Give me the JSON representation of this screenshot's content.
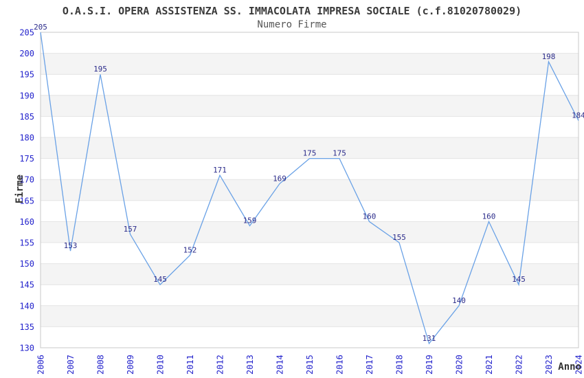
{
  "header": {
    "title": "O.A.S.I. OPERA ASSISTENZA SS. IMMACOLATA IMPRESA SOCIALE (c.f.81020780029)",
    "subtitle": "Numero Firme"
  },
  "chart_data": {
    "type": "line",
    "title": "O.A.S.I. OPERA ASSISTENZA SS. IMMACOLATA IMPRESA SOCIALE (c.f.81020780029)",
    "subtitle": "Numero Firme",
    "xlabel": "Anno",
    "ylabel": "Firme",
    "x": [
      "2006",
      "2007",
      "2008",
      "2009",
      "2010",
      "2011",
      "2012",
      "2013",
      "2014",
      "2015",
      "2016",
      "2017",
      "2018",
      "2019",
      "2020",
      "2021",
      "2022",
      "2023",
      "2024"
    ],
    "series": [
      {
        "name": "Numero Firme",
        "values": [
          205,
          153,
          195,
          157,
          145,
          152,
          171,
          159,
          169,
          175,
          175,
          160,
          155,
          131,
          140,
          160,
          145,
          198,
          184
        ]
      }
    ],
    "ylim": [
      130,
      205
    ],
    "ytick_step": 5,
    "grid": "horizontal alternating bands, gridline every 5 units, no vertical gridlines",
    "legend": "none",
    "point_labels": "value shown above each data point",
    "colors": {
      "line": "#69a1e6",
      "band": "#f4f4f4",
      "grid": "#e4e4e4",
      "border": "#c8c8c8",
      "tick_label": "#2323cc",
      "point_label": "#2b2b8a",
      "title": "#3a3a3a",
      "subtitle": "#555555",
      "axis_title": "#333333",
      "background": "#ffffff"
    }
  }
}
